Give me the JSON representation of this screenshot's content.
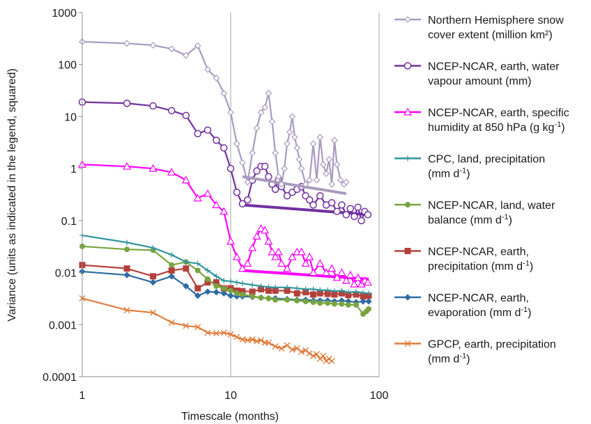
{
  "chart_data": {
    "type": "line",
    "title": "",
    "xlabel": "Timescale (months)",
    "ylabel": "Variance (units as indicated in the legend, squared)",
    "x_scale": "log",
    "y_scale": "log",
    "xlim": [
      1,
      100
    ],
    "ylim": [
      0.0001,
      1000
    ],
    "x_ticks": [
      "1",
      "10",
      "100"
    ],
    "y_ticks": [
      "0.0001",
      "0.001",
      "0.01",
      "0.1",
      "1",
      "10",
      "100",
      "1000"
    ],
    "grid": "vertical gridlines at x = 1, 10, 100",
    "legend_position": "right",
    "series": [
      {
        "name_main": "Northern Hemisphere snow",
        "name_cont": "cover extent (million km²)",
        "name_sup": "",
        "name_tail": "",
        "color": "#a99bbf",
        "marker": "diamond",
        "x": [
          1,
          2,
          3,
          4,
          5,
          6,
          7,
          8,
          9,
          10,
          11,
          12,
          13,
          14,
          15,
          16,
          17,
          18,
          19,
          20,
          21,
          22,
          23,
          24,
          25,
          26,
          27,
          28,
          29,
          30,
          32,
          34,
          36,
          38,
          40,
          42,
          44,
          46,
          48,
          50,
          52,
          55,
          58,
          60
        ],
        "y": [
          275,
          255,
          235,
          200,
          150,
          230,
          80,
          55,
          28,
          12,
          3,
          1.3,
          0.55,
          2,
          6,
          12,
          15,
          28,
          8,
          2,
          0.7,
          0.5,
          1,
          3,
          5,
          10,
          4,
          2.5,
          1.5,
          1,
          0.5,
          0.6,
          3,
          0.6,
          4,
          1.2,
          0.8,
          1.5,
          0.5,
          3.5,
          1.2,
          0.6,
          0.5,
          0.55
        ],
        "fit_x": [
          12,
          60
        ],
        "fit_y": [
          0.7,
          0.33
        ]
      },
      {
        "name_main": "NCEP-NCAR, earth, water",
        "name_cont": "vapour amount (mm)",
        "name_sup": "",
        "name_tail": "",
        "color": "#7030a0",
        "marker": "circle",
        "x": [
          1,
          2,
          3,
          4,
          5,
          6,
          7,
          8,
          9,
          10,
          11,
          12,
          13,
          14,
          15,
          16,
          17,
          18,
          19,
          20,
          21,
          22,
          24,
          26,
          28,
          30,
          32,
          34,
          36,
          40,
          44,
          48,
          52,
          56,
          60,
          64,
          68,
          72,
          76,
          80,
          84
        ],
        "y": [
          19,
          18,
          16,
          13,
          10.5,
          4.7,
          5.5,
          3.5,
          2.5,
          1,
          0.35,
          0.21,
          0.25,
          0.6,
          0.9,
          1.1,
          1.1,
          0.7,
          0.5,
          0.4,
          0.6,
          0.45,
          0.3,
          0.35,
          0.4,
          0.45,
          0.3,
          0.25,
          0.2,
          0.3,
          0.2,
          0.22,
          0.15,
          0.2,
          0.13,
          0.17,
          0.12,
          0.18,
          0.1,
          0.15,
          0.13
        ],
        "fit_x": [
          12,
          85
        ],
        "fit_y": [
          0.2,
          0.13
        ]
      },
      {
        "name_main": "NCEP-NCAR, earth, specific",
        "name_cont": "humidity at 850 hPa (g kg",
        "name_sup": "-1",
        "name_tail": ")",
        "color": "#ff00ff",
        "marker": "triangle",
        "x": [
          1,
          2,
          3,
          4,
          5,
          6,
          7,
          8,
          9,
          10,
          11,
          12,
          13,
          14,
          15,
          16,
          17,
          18,
          19,
          20,
          21,
          22,
          24,
          26,
          28,
          30,
          32,
          34,
          36,
          40,
          44,
          48,
          52,
          56,
          60,
          64,
          68,
          72,
          76,
          80,
          84
        ],
        "y": [
          1.2,
          1.1,
          1.0,
          0.85,
          0.6,
          0.27,
          0.33,
          0.2,
          0.15,
          0.04,
          0.02,
          0.012,
          0.015,
          0.03,
          0.05,
          0.07,
          0.065,
          0.04,
          0.025,
          0.02,
          0.025,
          0.015,
          0.012,
          0.02,
          0.025,
          0.025,
          0.015,
          0.02,
          0.01,
          0.015,
          0.01,
          0.012,
          0.008,
          0.01,
          0.007,
          0.009,
          0.006,
          0.008,
          0.006,
          0.007,
          0.0065
        ],
        "fit_x": [
          12,
          85
        ],
        "fit_y": [
          0.011,
          0.0075
        ]
      },
      {
        "name_main": "CPC, land, precipitation",
        "name_cont": "(mm d",
        "name_sup": "-1",
        "name_tail": ")",
        "color": "#31949e",
        "marker": "plus",
        "x": [
          1,
          2,
          3,
          4,
          5,
          6,
          7,
          8,
          9,
          10,
          11,
          12,
          14,
          16,
          18,
          20,
          24,
          28,
          32,
          36,
          40,
          45,
          50,
          56,
          62,
          70,
          78,
          85
        ],
        "y": [
          0.052,
          0.038,
          0.03,
          0.022,
          0.016,
          0.015,
          0.011,
          0.0085,
          0.007,
          0.0068,
          0.0065,
          0.0062,
          0.0058,
          0.0055,
          0.0053,
          0.0052,
          0.0052,
          0.005,
          0.0048,
          0.0048,
          0.0046,
          0.0046,
          0.0044,
          0.0045,
          0.0042,
          0.0043,
          0.0041,
          0.004
        ]
      },
      {
        "name_main": "NCEP-NCAR, land, water",
        "name_cont": "balance (mm d",
        "name_sup": "-1",
        "name_tail": ")",
        "color": "#77a540",
        "marker": "circle-filled",
        "x": [
          1,
          2,
          3,
          4,
          5,
          6,
          7,
          8,
          9,
          10,
          11,
          12,
          14,
          16,
          18,
          20,
          24,
          28,
          32,
          36,
          40,
          45,
          50,
          56,
          62,
          70,
          78,
          82,
          85
        ],
        "y": [
          0.032,
          0.028,
          0.027,
          0.014,
          0.016,
          0.011,
          0.0075,
          0.0055,
          0.005,
          0.0045,
          0.004,
          0.0038,
          0.0035,
          0.0033,
          0.0032,
          0.003,
          0.003,
          0.0029,
          0.0028,
          0.0027,
          0.0026,
          0.0026,
          0.0025,
          0.0025,
          0.0024,
          0.0024,
          0.0016,
          0.0018,
          0.002
        ]
      },
      {
        "name_main": "NCEP-NCAR, earth,",
        "name_cont": "precipitation (mm d",
        "name_sup": "-1",
        "name_tail": ")",
        "color": "#b5403a",
        "marker": "square",
        "x": [
          1,
          2,
          3,
          4,
          5,
          6,
          7,
          8,
          9,
          10,
          11,
          12,
          14,
          16,
          18,
          20,
          24,
          28,
          32,
          36,
          40,
          45,
          50,
          56,
          62,
          70,
          78,
          85
        ],
        "y": [
          0.014,
          0.012,
          0.0085,
          0.011,
          0.012,
          0.005,
          0.0065,
          0.0065,
          0.005,
          0.005,
          0.0045,
          0.0044,
          0.0043,
          0.0048,
          0.0045,
          0.0045,
          0.0045,
          0.004,
          0.0042,
          0.0038,
          0.004,
          0.0039,
          0.0038,
          0.004,
          0.0037,
          0.0038,
          0.0035,
          0.0036
        ]
      },
      {
        "name_main": "NCEP-NCAR, earth,",
        "name_cont": "evaporation (mm d",
        "name_sup": "-1",
        "name_tail": ")",
        "color": "#2e6ca4",
        "marker": "diamond-filled",
        "x": [
          1,
          2,
          3,
          4,
          5,
          6,
          7,
          8,
          9,
          10,
          11,
          12,
          14,
          16,
          18,
          20,
          24,
          28,
          32,
          36,
          40,
          45,
          50,
          56,
          62,
          70,
          78,
          85
        ],
        "y": [
          0.0105,
          0.009,
          0.0065,
          0.0085,
          0.0055,
          0.0036,
          0.0043,
          0.0042,
          0.004,
          0.0036,
          0.0035,
          0.0035,
          0.0034,
          0.0033,
          0.0032,
          0.0032,
          0.0031,
          0.003,
          0.003,
          0.0029,
          0.0029,
          0.0029,
          0.0028,
          0.0029,
          0.0028,
          0.0027,
          0.0028,
          0.0028
        ]
      },
      {
        "name_main": "GPCP, earth, precipitation",
        "name_cont": "(mm d",
        "name_sup": "-1",
        "name_tail": ")",
        "color": "#e07b39",
        "marker": "x",
        "x": [
          1,
          2,
          3,
          4,
          5,
          6,
          7,
          8,
          9,
          10,
          11,
          12,
          13,
          14,
          15,
          16,
          17,
          18,
          20,
          22,
          24,
          26,
          28,
          30,
          32,
          34,
          36,
          38,
          40,
          42,
          44,
          46,
          48
        ],
        "y": [
          0.0032,
          0.0019,
          0.0017,
          0.0011,
          0.00095,
          0.0009,
          0.0007,
          0.00068,
          0.0007,
          0.00065,
          0.00058,
          0.00052,
          0.0005,
          0.00052,
          0.00048,
          0.0005,
          0.00045,
          0.00045,
          0.00038,
          0.00035,
          0.0004,
          0.00033,
          0.00035,
          0.0003,
          0.00032,
          0.00028,
          0.00025,
          0.00027,
          0.00022,
          0.00025,
          0.0002,
          0.00022,
          0.0002
        ]
      }
    ]
  }
}
